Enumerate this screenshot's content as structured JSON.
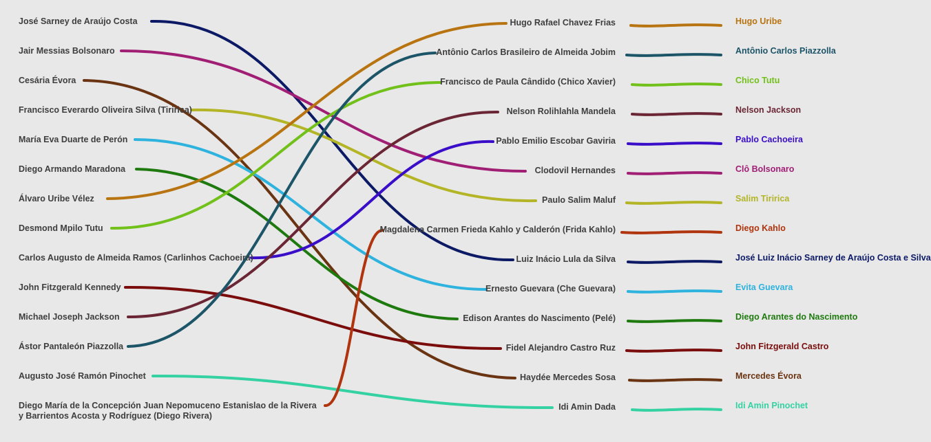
{
  "left_names": [
    "José Sarney de Araújo Costa",
    "Jair Messias Bolsonaro",
    "Cesária Évora",
    "Francisco Everardo Oliveira Silva (Tiririca)",
    "María Eva Duarte de Perón",
    "Diego Armando Maradona",
    "Álvaro Uribe Vélez",
    "Desmond Mpilo Tutu",
    "Carlos Augusto de Almeida Ramos (Carlinhos Cachoeira)",
    "John Fitzgerald Kennedy",
    "Michael Joseph Jackson",
    "Ástor Pantaleón Piazzolla",
    "Augusto José Ramón Pinochet",
    "Diego María de la Concepción Juan Nepomuceno Estanislao de la Rivera y Barrientos Acosta y Rodríguez (Diego Rivera)"
  ],
  "right_names": [
    "Hugo Rafael Chavez Frias",
    "Antônio Carlos Brasileiro de Almeida Jobim",
    "Francisco de Paula Cândido (Chico Xavier)",
    "Nelson Rolihlahla Mandela",
    "Pablo Emilio Escobar Gaviria",
    "Clodovil Hernandes",
    "Paulo Salim Maluf",
    "Magdalena Carmen Frieda Kahlo y Calderón (Frida Kahlo)",
    "Luiz Inácio Lula da Silva",
    "Ernesto Guevara (Che Guevara)",
    "Edison Arantes do Nascimento (Pelé)",
    "Fidel Alejandro Castro Ruz",
    "Haydée Mercedes Sosa",
    "Idi Amin Dada"
  ],
  "combined_names": [
    "Hugo Uribe",
    "Antônio Carlos Piazzolla",
    "Chico Tutu",
    "Nelson Jackson",
    "Pablo Cachoeira",
    "Clô Bolsonaro",
    "Salim Tiririca",
    "Diego Kahlo",
    "José Luiz Inácio Sarney de Araújo Costa e Silva",
    "Evita Guevara",
    "Diego Arantes do Nascimento",
    "John Fitzgerald Castro",
    "Mercedes Évora",
    "Idi Amin Pinochet"
  ],
  "colors": [
    "#b87410",
    "#1c5468",
    "#72c01a",
    "#6a2634",
    "#3a0ec8",
    "#a01e74",
    "#b3b526",
    "#b0340e",
    "#0c1a66",
    "#2eb2de",
    "#1e7a0e",
    "#7a0c0c",
    "#6a3412",
    "#34d2a2"
  ],
  "links": [
    {
      "from_left": 0,
      "to_right": 8,
      "color": "#0c1a66"
    },
    {
      "from_left": 1,
      "to_right": 5,
      "color": "#a01e74"
    },
    {
      "from_left": 2,
      "to_right": 12,
      "color": "#6a3412"
    },
    {
      "from_left": 3,
      "to_right": 6,
      "color": "#b3b526"
    },
    {
      "from_left": 4,
      "to_right": 9,
      "color": "#2eb2de"
    },
    {
      "from_left": 5,
      "to_right": 10,
      "color": "#1e7a0e"
    },
    {
      "from_left": 6,
      "to_right": 0,
      "color": "#b87410"
    },
    {
      "from_left": 7,
      "to_right": 2,
      "color": "#72c01a"
    },
    {
      "from_left": 8,
      "to_right": 4,
      "color": "#3a0ec8"
    },
    {
      "from_left": 9,
      "to_right": 11,
      "color": "#7a0c0c"
    },
    {
      "from_left": 10,
      "to_right": 3,
      "color": "#6a2634"
    },
    {
      "from_left": 11,
      "to_right": 1,
      "color": "#1c5468"
    },
    {
      "from_left": 12,
      "to_right": 13,
      "color": "#34d2a2"
    },
    {
      "from_left": 13,
      "to_right": 7,
      "color": "#b0340e"
    }
  ]
}
